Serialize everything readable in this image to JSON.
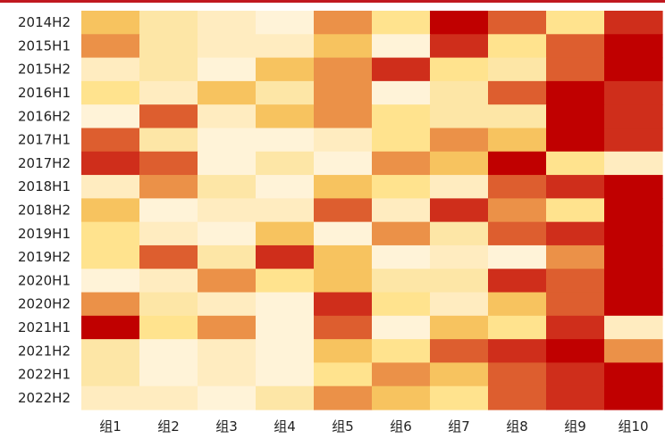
{
  "chart_data": {
    "type": "heatmap",
    "title": "",
    "xlabel": "",
    "ylabel": "",
    "columns": [
      "组1",
      "组2",
      "组3",
      "组4",
      "组5",
      "组6",
      "组7",
      "组8",
      "组9",
      "组10"
    ],
    "rows": [
      "2014H2",
      "2015H1",
      "2015H2",
      "2016H1",
      "2016H2",
      "2017H1",
      "2017H2",
      "2018H1",
      "2018H2",
      "2019H1",
      "2019H2",
      "2020H1",
      "2020H2",
      "2021H1",
      "2021H2",
      "2022H1",
      "2022H2"
    ],
    "value_range": [
      1,
      9
    ],
    "color_scale": [
      "#fff3d8",
      "#ffecc0",
      "#fde6a6",
      "#ffe38e",
      "#ffdf76",
      "#f7c35f",
      "#eb9148",
      "#dd5e2f",
      "#cf2e1b",
      "#c00000"
    ],
    "values": [
      [
        5,
        3,
        2,
        1,
        6,
        4,
        9,
        7,
        4,
        8
      ],
      [
        6,
        3,
        2,
        2,
        5,
        1,
        8,
        4,
        7,
        9
      ],
      [
        2,
        3,
        1,
        5,
        6,
        8,
        4,
        3,
        7,
        9
      ],
      [
        4,
        2,
        5,
        3,
        6,
        1,
        3,
        7,
        9,
        8
      ],
      [
        1,
        7,
        2,
        5,
        6,
        4,
        3,
        3,
        9,
        8
      ],
      [
        7,
        3,
        1,
        1,
        2,
        4,
        6,
        5,
        9,
        8
      ],
      [
        8,
        7,
        1,
        3,
        1,
        6,
        5,
        9,
        4,
        2
      ],
      [
        2,
        6,
        3,
        1,
        5,
        4,
        2,
        7,
        8,
        9
      ],
      [
        5,
        1,
        2,
        2,
        7,
        2,
        8,
        6,
        4,
        9
      ],
      [
        4,
        2,
        1,
        5,
        1,
        6,
        3,
        7,
        8,
        9
      ],
      [
        4,
        7,
        3,
        8,
        5,
        1,
        2,
        1,
        6,
        9
      ],
      [
        1,
        2,
        6,
        4,
        5,
        3,
        3,
        8,
        7,
        9
      ],
      [
        6,
        3,
        2,
        1,
        8,
        4,
        2,
        5,
        7,
        9
      ],
      [
        9,
        4,
        6,
        1,
        7,
        1,
        5,
        4,
        8,
        2
      ],
      [
        3,
        1,
        2,
        1,
        5,
        4,
        7,
        8,
        9,
        6
      ],
      [
        3,
        1,
        2,
        1,
        4,
        6,
        5,
        7,
        8,
        9
      ],
      [
        2,
        2,
        1,
        3,
        6,
        5,
        4,
        7,
        8,
        9
      ]
    ]
  }
}
